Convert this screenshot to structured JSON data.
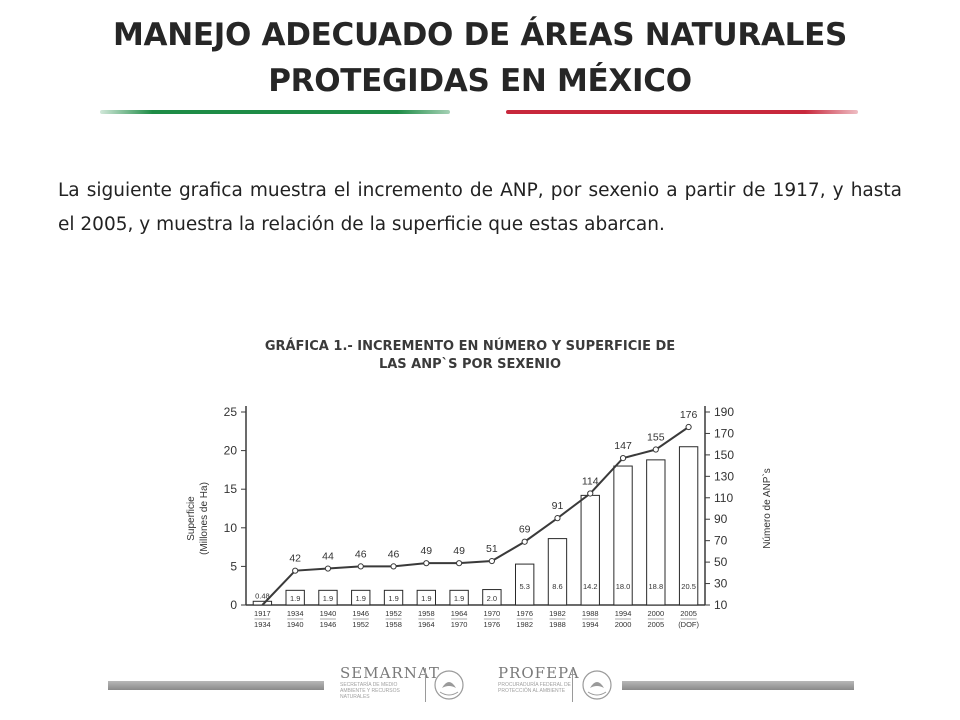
{
  "title": {
    "line1": "MANEJO ADECUADO DE ÁREAS NATURALES",
    "line2": "PROTEGIDAS EN MÉXICO"
  },
  "intro_text": "La siguiente grafica muestra el incremento de ANP, por sexenio a partir de 1917, y hasta el 2005, y muestra la relación de la superficie que estas abarcan.",
  "colors": {
    "green_rule": "#1e8c46",
    "red_rule": "#c8283c",
    "line": "#3a3a3a"
  },
  "footer": {
    "logo1": "SEMARNAT",
    "logo1_sub": "SECRETARÍA DE MEDIO AMBIENTE Y RECURSOS NATURALES",
    "logo2": "PROFEPA",
    "logo2_sub": "PROCURADURÍA FEDERAL DE PROTECCIÓN AL AMBIENTE"
  },
  "chart_data": {
    "type": "bar",
    "title": "GRÁFICA 1.- INCREMENTO EN NÚMERO Y SUPERFICIE DE LAS ANP`S POR SEXENIO",
    "title_lines": [
      "GRÁFICA 1.- INCREMENTO EN NÚMERO Y SUPERFICIE DE",
      "LAS ANP`S POR SEXENIO"
    ],
    "categories": [
      [
        "1917",
        "1934"
      ],
      [
        "1934",
        "1940"
      ],
      [
        "1940",
        "1946"
      ],
      [
        "1946",
        "1952"
      ],
      [
        "1952",
        "1958"
      ],
      [
        "1958",
        "1964"
      ],
      [
        "1964",
        "1970"
      ],
      [
        "1970",
        "1976"
      ],
      [
        "1976",
        "1982"
      ],
      [
        "1982",
        "1988"
      ],
      [
        "1988",
        "1994"
      ],
      [
        "1994",
        "2000"
      ],
      [
        "2000",
        "2005"
      ],
      [
        "2005",
        "(DOF)"
      ]
    ],
    "ylabel_left": [
      "Superficie",
      "(Millones de Ha)"
    ],
    "ylabel_right": "Número de ANP`s",
    "ylim_left": [
      0,
      25
    ],
    "yticks_left": [
      0,
      5,
      10,
      15,
      20,
      25
    ],
    "ylim_right": [
      10,
      190
    ],
    "yticks_right": [
      10,
      30,
      50,
      70,
      90,
      110,
      130,
      150,
      170,
      190
    ],
    "grid": false,
    "series": [
      {
        "kind": "bar",
        "axis": "left",
        "values": [
          0.48,
          1.9,
          1.9,
          1.9,
          1.9,
          1.9,
          1.9,
          2.0,
          5.3,
          8.6,
          14.2,
          18.0,
          18.8,
          20.5
        ],
        "labels": [
          "0.48",
          "1.9",
          "1.9",
          "1.9",
          "1.9",
          "1.9",
          "1.9",
          "2.0",
          "5.3",
          "8.6",
          "14.2",
          "18.0",
          "18.8",
          "20.5"
        ]
      },
      {
        "kind": "line",
        "axis": "right",
        "values": [
          null,
          42,
          44,
          46,
          46,
          49,
          49,
          51,
          69,
          91,
          114,
          147,
          155,
          176
        ],
        "labels": [
          "",
          "42",
          "44",
          "46",
          "46",
          "49",
          "49",
          "51",
          "69",
          "91",
          "114",
          "147",
          "155",
          "176"
        ]
      }
    ]
  }
}
